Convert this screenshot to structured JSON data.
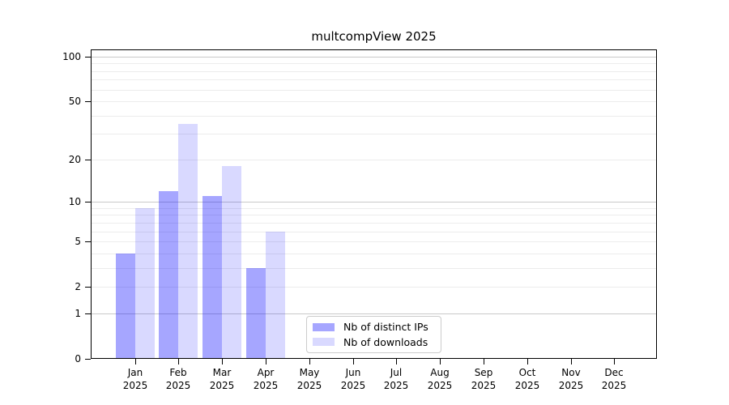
{
  "title": "multcompView 2025",
  "chart_data": {
    "type": "bar",
    "title": "multcompView 2025",
    "y_scale": "log(value+1)",
    "categories": [
      "Jan",
      "Feb",
      "Mar",
      "Apr",
      "May",
      "Jun",
      "Jul",
      "Aug",
      "Sep",
      "Oct",
      "Nov",
      "Dec"
    ],
    "x_tick_year": "2025",
    "series": [
      {
        "name": "Nb of distinct IPs",
        "color": "rgba(0,0,255,0.35)",
        "values": [
          4,
          12,
          11,
          3,
          0,
          0,
          0,
          0,
          0,
          0,
          0,
          0
        ]
      },
      {
        "name": "Nb of downloads",
        "color": "rgba(0,0,255,0.15)",
        "values": [
          9,
          35,
          18,
          6,
          0,
          0,
          0,
          0,
          0,
          0,
          0,
          0
        ]
      }
    ],
    "y_axis": {
      "tick_labels": [
        "0",
        "1",
        "2",
        "5",
        "10",
        "20",
        "50",
        "100"
      ],
      "tick_values": [
        0,
        1,
        2,
        5,
        10,
        20,
        50,
        100
      ],
      "minor_grid_values": [
        2,
        3,
        4,
        5,
        6,
        7,
        8,
        9,
        20,
        30,
        40,
        50,
        60,
        70,
        80,
        90
      ],
      "major_grid_values": [
        1,
        10,
        100
      ],
      "range": [
        0,
        100
      ]
    },
    "grid": true,
    "legend_position": "bottom-center-inside"
  },
  "legend": {
    "items": [
      {
        "label": "Nb of distinct IPs",
        "swatch_color": "rgba(0,0,255,0.35)"
      },
      {
        "label": "Nb of downloads",
        "swatch_color": "rgba(0,0,255,0.15)"
      }
    ]
  },
  "colors": {
    "background": "#ffffff",
    "frame": "#000000",
    "grid_minor": "#ececec",
    "grid_major": "#c9c9c9",
    "text": "#000000"
  }
}
